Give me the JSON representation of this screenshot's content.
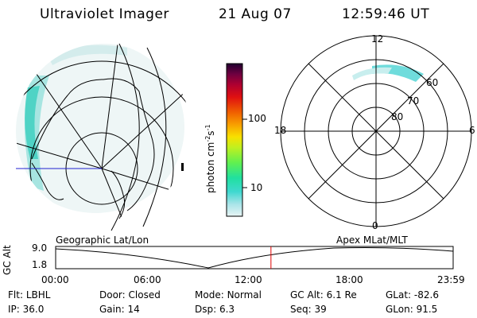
{
  "header": {
    "instrument": "Ultraviolet Imager",
    "date": "21 Aug 07",
    "time": "12:59:46 UT"
  },
  "colorbar": {
    "unit_label": "photon cm",
    "unit_exp1": "-2",
    "unit_mid": "s",
    "unit_exp2": "-1",
    "tick_high": "100",
    "tick_low": "10",
    "gradient_colors": [
      "#e8f4f4",
      "#a8e4e8",
      "#40d8d0",
      "#20e0a0",
      "#60f050",
      "#c0f020",
      "#f8e000",
      "#f8a000",
      "#f06000",
      "#e01010",
      "#b00030",
      "#700040",
      "#200030"
    ]
  },
  "left_map": {
    "title": "Geographic Lat/Lon"
  },
  "right_map": {
    "title": "Apex MLat/MLT",
    "mlt_labels": {
      "top": "12",
      "left": "18",
      "right": "6",
      "bottom": "0"
    },
    "lat_labels": [
      "60",
      "70",
      "80"
    ]
  },
  "timeline": {
    "y_axis_label": "GC Alt",
    "y_max": "9.0",
    "y_min": "1.8",
    "x_ticks": [
      "00:00",
      "06:00",
      "12:00",
      "18:00",
      "23:59"
    ],
    "current_time_marker_hours": 13.0
  },
  "info": {
    "row1": [
      {
        "label": "Flt:",
        "value": "LBHL"
      },
      {
        "label": "Door:",
        "value": "Closed"
      },
      {
        "label": "Mode:",
        "value": "Normal"
      },
      {
        "label": "GC Alt:",
        "value": "6.1 Re"
      },
      {
        "label": "GLat:",
        "value": "-82.6"
      }
    ],
    "row2": [
      {
        "label": "IP:",
        "value": "36.0"
      },
      {
        "label": "Gain:",
        "value": "14"
      },
      {
        "label": "Dsp:",
        "value": "6.3"
      },
      {
        "label": "Seq:",
        "value": "39"
      },
      {
        "label": "GLon:",
        "value": "91.5"
      }
    ]
  }
}
